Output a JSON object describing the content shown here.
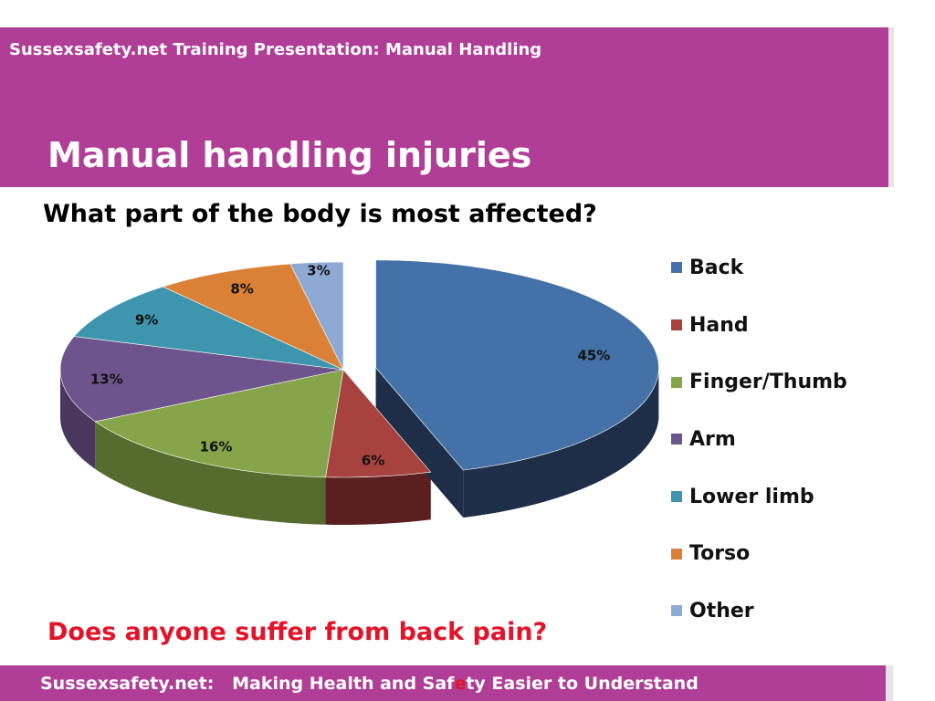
{
  "header": {
    "subtitle": "Sussexsafety.net Training Presentation: Manual Handling",
    "title": "Manual handling injuries"
  },
  "question": "What part of the body is most affected?",
  "prompt": "Does anyone suffer from back pain?",
  "footer": {
    "part1": "Sussexsafety.net:   Making Health and Saf",
    "highlight": "e",
    "part2": "ty Easier to Understand"
  },
  "chart_data": {
    "type": "pie",
    "style": "3d-exploded",
    "title": "",
    "legend_position": "right",
    "categories": [
      "Back",
      "Hand",
      "Finger/Thumb",
      "Arm",
      "Lower limb",
      "Torso",
      "Other"
    ],
    "values": [
      45,
      6,
      16,
      13,
      9,
      8,
      3
    ],
    "value_labels": [
      "45%",
      "6%",
      "16%",
      "13%",
      "9%",
      "8%",
      "3%"
    ],
    "colors": [
      "#4472a8",
      "#a8423f",
      "#86a44a",
      "#6e548d",
      "#3d96ae",
      "#da8137",
      "#8ea9d4"
    ],
    "side_colors": [
      "#1e2d48",
      "#5a1f1e",
      "#566b2e",
      "#4a375e",
      "#25606f",
      "#8c5220",
      "#5a6e8e"
    ]
  }
}
